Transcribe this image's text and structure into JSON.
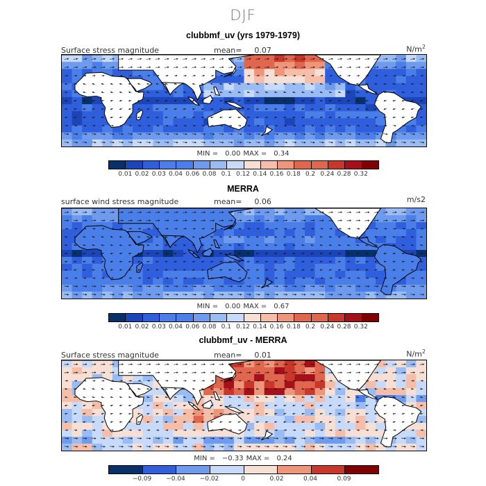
{
  "season": "DJF",
  "colors": [
    "#08306b",
    "#1c45b8",
    "#2f5fdc",
    "#4a7ee8",
    "#6f9bef",
    "#9abcf4",
    "#c7daf9",
    "#f6e0d6",
    "#f6bea9",
    "#ef9579",
    "#e0664e",
    "#c9362a",
    "#a6101a",
    "#800000"
  ],
  "panels": [
    {
      "title": "clubbmf_uv (yrs 1979-1979)",
      "label": "Surface stress magnitude",
      "mean_label": "mean=",
      "mean": "0.07",
      "units": "N/m",
      "units_sup": "2",
      "min_label": "MIN =",
      "min": "0.00",
      "max_label": "MAX =",
      "max": "0.34",
      "chart_data": {
        "type": "heatmap",
        "variable": "Surface stress magnitude",
        "units": "N/m2",
        "mean": 0.07,
        "min": 0.0,
        "max": 0.34,
        "colorbar_levels": [
          "0.01",
          "0.02",
          "0.03",
          "0.04",
          "0.06",
          "0.08",
          "0.1",
          "0.12",
          "0.14",
          "0.16",
          "0.18",
          "0.2",
          "0.24",
          "0.28",
          "0.32"
        ]
      }
    },
    {
      "title": "MERRA",
      "label": "surface wind stress magnitude",
      "mean_label": "mean=",
      "mean": "0.06",
      "units": "m/s2",
      "units_sup": "",
      "min_label": "MIN =",
      "min": "0.00",
      "max_label": "MAX =",
      "max": "0.67",
      "chart_data": {
        "type": "heatmap",
        "variable": "surface wind stress magnitude",
        "units": "m/s2",
        "mean": 0.06,
        "min": 0.0,
        "max": 0.67,
        "colorbar_levels": [
          "0.01",
          "0.02",
          "0.03",
          "0.04",
          "0.06",
          "0.08",
          "0.1",
          "0.12",
          "0.14",
          "0.16",
          "0.18",
          "0.2",
          "0.24",
          "0.28",
          "0.32"
        ]
      }
    },
    {
      "title": "clubbmf_uv - MERRA",
      "label": "Surface stress magnitude",
      "mean_label": "mean=",
      "mean": "0.01",
      "units": "N/m",
      "units_sup": "2",
      "min_label": "MIN =",
      "min": "−0.33",
      "max_label": "MAX =",
      "max": "0.24",
      "chart_data": {
        "type": "heatmap",
        "variable": "Surface stress magnitude difference",
        "units": "N/m2",
        "mean": 0.01,
        "min": -0.33,
        "max": 0.24,
        "colorbar_levels": [
          "−0.09",
          "−0.04",
          "−0.02",
          "0",
          "0.02",
          "0.04",
          "0.09"
        ]
      }
    }
  ]
}
